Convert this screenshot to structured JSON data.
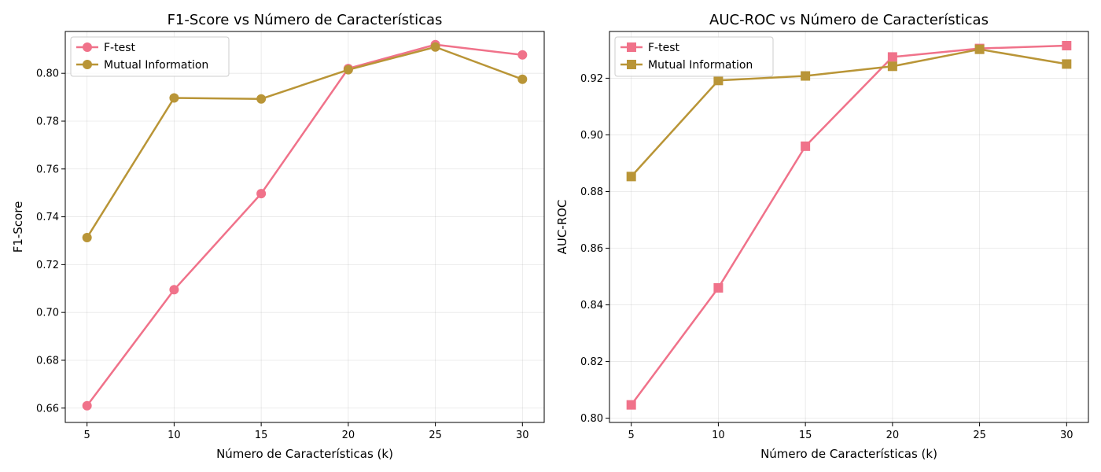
{
  "chart_data": [
    {
      "type": "line",
      "title": "F1-Score vs Número de Características",
      "xlabel": "Número de Características (k)",
      "ylabel": "F1-Score",
      "x": [
        5,
        10,
        15,
        20,
        25,
        30
      ],
      "xlim": [
        3.75,
        31.25
      ],
      "ylim": [
        0.654,
        0.8175
      ],
      "xticks": [
        5,
        10,
        15,
        20,
        25,
        30
      ],
      "yticks": [
        0.66,
        0.68,
        0.7,
        0.72,
        0.74,
        0.76,
        0.78,
        0.8
      ],
      "grid": true,
      "legend": "upper left",
      "marker": "circle",
      "series": [
        {
          "name": "F-test",
          "color": "#f0728a",
          "values": [
            0.661,
            0.7095,
            0.7497,
            0.802,
            0.812,
            0.8077
          ]
        },
        {
          "name": "Mutual Information",
          "color": "#b99537",
          "values": [
            0.7313,
            0.7897,
            0.7893,
            0.8015,
            0.811,
            0.7975
          ]
        }
      ]
    },
    {
      "type": "line",
      "title": "AUC-ROC vs Número de Características",
      "xlabel": "Número de Características (k)",
      "ylabel": "AUC-ROC",
      "x": [
        5,
        10,
        15,
        20,
        25,
        30
      ],
      "xlim": [
        3.75,
        31.25
      ],
      "ylim": [
        0.7985,
        0.9365
      ],
      "xticks": [
        5,
        10,
        15,
        20,
        25,
        30
      ],
      "yticks": [
        0.8,
        0.82,
        0.84,
        0.86,
        0.88,
        0.9,
        0.92
      ],
      "grid": true,
      "legend": "upper left",
      "marker": "square",
      "series": [
        {
          "name": "F-test",
          "color": "#f0728a",
          "values": [
            0.8047,
            0.846,
            0.896,
            0.9275,
            0.9305,
            0.9315
          ]
        },
        {
          "name": "Mutual Information",
          "color": "#b99537",
          "values": [
            0.8853,
            0.9192,
            0.9208,
            0.9242,
            0.9302,
            0.925
          ]
        }
      ]
    }
  ]
}
